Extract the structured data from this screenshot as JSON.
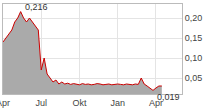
{
  "chart_data": {
    "type": "area",
    "categories": [
      "Apr",
      null,
      null,
      null,
      null,
      null,
      null,
      null,
      null,
      null,
      null,
      null,
      null,
      "Jul",
      null,
      null,
      null,
      null,
      null,
      null,
      null,
      null,
      null,
      null,
      null,
      null,
      "Okt",
      null,
      null,
      null,
      null,
      null,
      null,
      null,
      null,
      null,
      null,
      null,
      null,
      "Jan",
      null,
      null,
      null,
      null,
      null,
      null,
      null,
      null,
      null,
      null,
      null,
      null,
      "Apr",
      null,
      null
    ],
    "values": [
      0.14,
      0.15,
      0.16,
      0.17,
      0.19,
      0.2,
      0.216,
      0.2,
      0.19,
      0.2,
      0.19,
      0.18,
      0.17,
      0.07,
      0.1,
      0.06,
      0.05,
      0.04,
      0.045,
      0.035,
      0.04,
      0.035,
      0.037,
      0.034,
      0.036,
      0.035,
      0.033,
      0.036,
      0.034,
      0.035,
      0.033,
      0.034,
      0.036,
      0.035,
      0.033,
      0.034,
      0.035,
      0.033,
      0.034,
      0.035,
      0.034,
      0.033,
      0.035,
      0.034,
      0.033,
      0.035,
      0.034,
      0.05,
      0.035,
      0.03,
      0.025,
      0.019,
      0.025,
      0.03,
      0.03
    ],
    "color": "#cc0000",
    "fill_color": "#aaaaaa",
    "ylim": [
      0.01,
      0.235
    ],
    "yticks": [
      {
        "value": 0.05,
        "label": "0,05"
      },
      {
        "value": 0.1,
        "label": "0,10"
      },
      {
        "value": 0.15,
        "label": "0,15"
      },
      {
        "value": 0.2,
        "label": "0,20"
      }
    ],
    "grid": true,
    "annotations": [
      {
        "text": "0,216",
        "index": 6,
        "value": 0.216
      },
      {
        "text": "0,019",
        "index": 51,
        "value": 0.019
      }
    ]
  }
}
